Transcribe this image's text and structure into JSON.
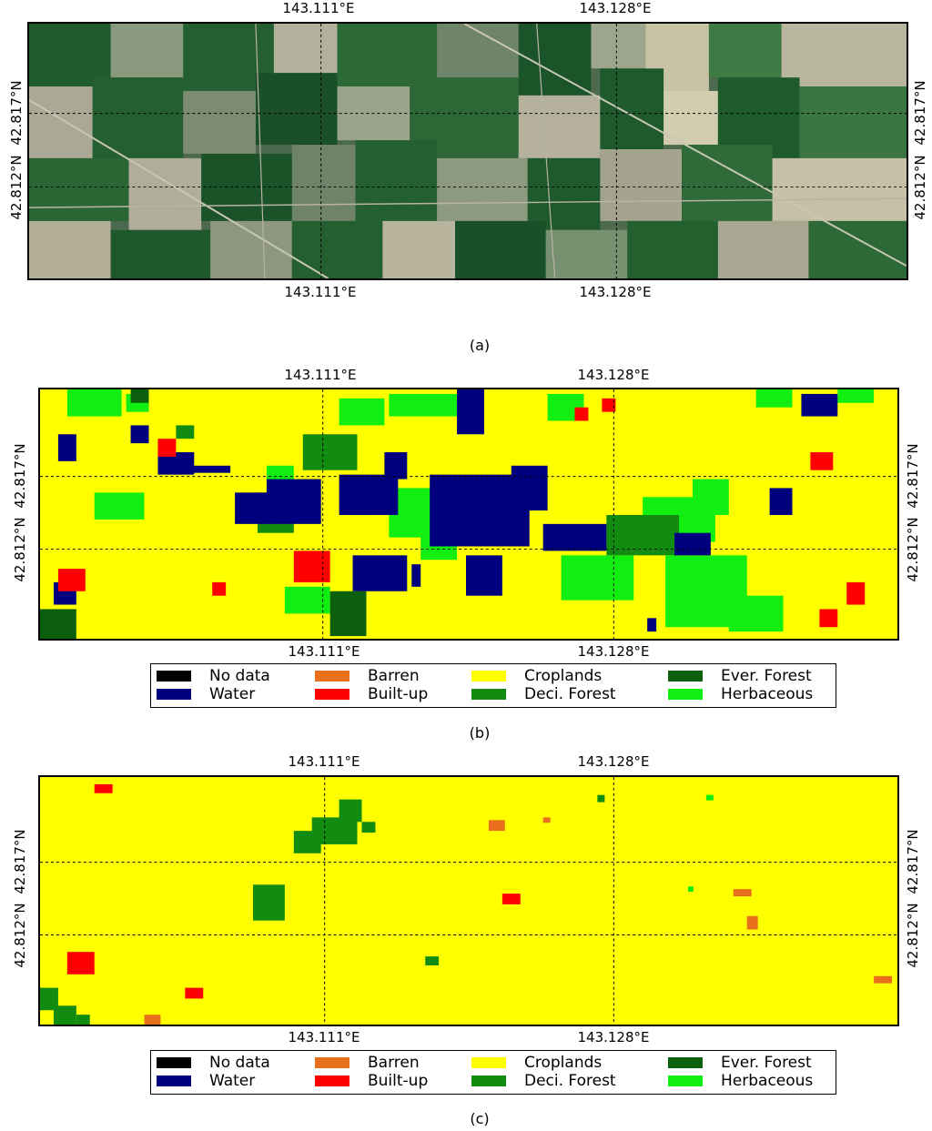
{
  "axes": {
    "lon_ticks": [
      "143.111°E",
      "143.128°E"
    ],
    "lat_ticks": [
      "42.817°N",
      "42.812°N"
    ]
  },
  "panels": [
    {
      "caption": "(a)",
      "map_type": "satellite-imagery"
    },
    {
      "caption": "(b)",
      "map_type": "land-cover-classification"
    },
    {
      "caption": "(c)",
      "map_type": "land-cover-classification"
    }
  ],
  "legend": {
    "items": [
      {
        "label": "No data",
        "color": "#000000"
      },
      {
        "label": "Water",
        "color": "#00007f"
      },
      {
        "label": "Barren",
        "color": "#e8701c"
      },
      {
        "label": "Built-up",
        "color": "#ff0000"
      },
      {
        "label": "Croplands",
        "color": "#ffff00"
      },
      {
        "label": "Deci. Forest",
        "color": "#118c11"
      },
      {
        "label": "Ever. Forest",
        "color": "#0c5f0c"
      },
      {
        "label": "Herbaceous",
        "color": "#11ee11"
      }
    ]
  },
  "colors": {
    "imagery_dark_field": "#1d5a2c",
    "imagery_light_field": "#a9a995",
    "grid_line": "#000000"
  }
}
